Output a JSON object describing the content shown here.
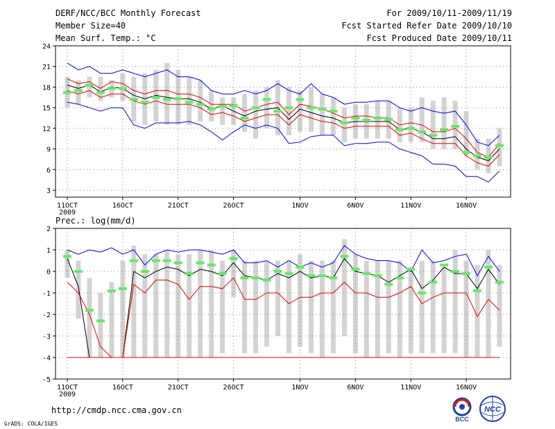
{
  "header": {
    "title": "DERF/NCC/BCC Monthly Forecast",
    "member_size": "Member Size=40",
    "variable_temp": "Mean Surf. Temp.: °C",
    "forecast_range": "For 2009/10/11-2009/11/19",
    "fcst_started": "Fcst Started Refer Date 2009/10/10",
    "fcst_produced": "Fcst Produced Date 2009/10/11"
  },
  "footer": {
    "url": "http://cmdp.ncc.cma.gov.cn",
    "grads": "GrADS: COLA/IGES",
    "logo_bcc": "BCC",
    "logo_ncc": "NCC"
  },
  "colors": {
    "box": "#d3d3d3",
    "green": "#66e866",
    "blue": "#0000e6",
    "red": "#e00000",
    "black": "#000000",
    "grid": "#888888"
  },
  "chart_data": [
    {
      "type": "line",
      "title": "Mean Surf. Temp.: °C",
      "ylim": [
        2,
        24
      ],
      "yticks": [
        3,
        6,
        9,
        12,
        15,
        18,
        21,
        24
      ],
      "x_start_label": "11OCT",
      "x_ticks": [
        {
          "day": 0,
          "label": "11OCT"
        },
        {
          "day": 5,
          "label": "16OCT"
        },
        {
          "day": 10,
          "label": "21OCT"
        },
        {
          "day": 15,
          "label": "26OCT"
        },
        {
          "day": 21,
          "label": "1NOV"
        },
        {
          "day": 26,
          "label": "6NOV"
        },
        {
          "day": 31,
          "label": "11NOV"
        },
        {
          "day": 36,
          "label": "16NOV"
        }
      ],
      "year_label": "2009",
      "days": 40,
      "box_low": [
        15.0,
        15.5,
        16.5,
        16.0,
        16.5,
        16.0,
        13.0,
        12.5,
        13.0,
        12.5,
        12.5,
        12.5,
        13.0,
        13.0,
        12.5,
        12.5,
        11.5,
        10.5,
        12.0,
        11.0,
        11.0,
        11.5,
        11.5,
        11.0,
        11.0,
        10.0,
        10.5,
        10.5,
        10.5,
        10.5,
        10.0,
        10.0,
        10.0,
        9.0,
        9.0,
        9.0,
        8.0,
        6.0,
        5.5,
        6.5
      ],
      "box_high": [
        19.5,
        19.0,
        19.5,
        19.5,
        19.0,
        20.0,
        19.5,
        20.0,
        20.5,
        21.5,
        20.5,
        19.5,
        19.0,
        17.5,
        16.5,
        16.5,
        17.0,
        17.5,
        18.0,
        19.0,
        18.0,
        17.5,
        18.0,
        17.0,
        16.5,
        15.0,
        15.5,
        15.5,
        16.0,
        16.0,
        15.0,
        15.0,
        16.5,
        16.0,
        16.5,
        16.0,
        14.5,
        10.5,
        10.5,
        12.0
      ],
      "green": [
        17.2,
        17.5,
        18.3,
        17.2,
        17.8,
        17.8,
        16.2,
        15.8,
        16.5,
        16.2,
        16.3,
        15.8,
        15.5,
        14.8,
        15.2,
        15.3,
        13.5,
        15.0,
        16.2,
        14.5,
        15.0,
        16.2,
        15.0,
        14.8,
        14.5,
        12.8,
        13.5,
        13.2,
        13.5,
        13.3,
        11.8,
        12.0,
        11.5,
        11.0,
        11.8,
        12.3,
        8.5,
        8.0,
        7.8,
        9.5
      ],
      "series": [
        {
          "name": "max",
          "color": "#0000e6",
          "values": [
            21.5,
            20.5,
            21.0,
            20.0,
            20.0,
            20.5,
            20.0,
            19.5,
            20.0,
            20.5,
            19.5,
            19.5,
            19.0,
            17.5,
            17.0,
            17.0,
            17.5,
            17.0,
            17.5,
            18.5,
            17.5,
            17.0,
            18.5,
            17.0,
            16.5,
            15.5,
            15.8,
            15.8,
            16.0,
            16.0,
            15.0,
            14.5,
            15.0,
            14.5,
            14.2,
            14.5,
            12.5,
            10.0,
            9.5,
            11.0
          ]
        },
        {
          "name": "mean_plus",
          "color": "#e00000",
          "values": [
            19.2,
            18.5,
            18.8,
            17.8,
            18.8,
            18.5,
            17.5,
            17.0,
            17.5,
            17.5,
            17.0,
            17.0,
            16.5,
            15.5,
            15.5,
            15.5,
            14.5,
            15.0,
            15.5,
            15.8,
            14.0,
            15.5,
            15.2,
            14.8,
            14.2,
            13.5,
            13.8,
            13.8,
            13.5,
            13.5,
            12.5,
            12.8,
            12.5,
            11.5,
            11.5,
            12.0,
            10.5,
            8.5,
            7.8,
            9.8
          ]
        },
        {
          "name": "mean",
          "color": "#000000",
          "values": [
            18.3,
            17.8,
            18.3,
            17.3,
            18.0,
            17.8,
            16.8,
            16.3,
            16.8,
            16.5,
            16.3,
            16.3,
            15.8,
            14.8,
            15.3,
            14.5,
            13.8,
            14.5,
            14.8,
            15.0,
            13.3,
            14.8,
            14.3,
            13.8,
            13.5,
            12.8,
            13.0,
            13.0,
            13.0,
            13.0,
            11.8,
            12.0,
            11.5,
            10.5,
            10.5,
            10.8,
            9.0,
            7.8,
            7.3,
            9.0
          ]
        },
        {
          "name": "mean_minus",
          "color": "#e00000",
          "values": [
            17.5,
            17.0,
            17.5,
            16.5,
            17.0,
            17.0,
            16.0,
            15.5,
            16.0,
            15.5,
            15.5,
            15.5,
            15.0,
            14.0,
            14.3,
            13.8,
            13.0,
            13.5,
            14.0,
            14.0,
            12.5,
            14.0,
            13.5,
            13.0,
            12.8,
            12.0,
            12.3,
            12.3,
            12.3,
            12.3,
            11.0,
            11.3,
            10.5,
            9.8,
            9.8,
            9.8,
            8.0,
            7.0,
            6.5,
            8.2
          ]
        },
        {
          "name": "min",
          "color": "#0000e6",
          "values": [
            15.8,
            15.5,
            15.0,
            14.5,
            15.0,
            15.0,
            12.5,
            12.0,
            12.8,
            12.8,
            12.8,
            13.0,
            12.5,
            11.5,
            10.3,
            11.5,
            12.5,
            12.0,
            12.5,
            12.0,
            9.8,
            10.0,
            10.8,
            11.0,
            11.0,
            9.5,
            9.8,
            9.8,
            10.0,
            10.0,
            9.0,
            8.5,
            8.0,
            6.8,
            6.8,
            6.5,
            5.0,
            5.0,
            4.2,
            5.8
          ]
        }
      ]
    },
    {
      "type": "line",
      "title": "Prec.: log(mm/d)",
      "ylim": [
        -5,
        2
      ],
      "yticks": [
        -5,
        -4,
        -3,
        -2,
        -1,
        0,
        1,
        2
      ],
      "x_ticks": [
        {
          "day": 0,
          "label": "11OCT"
        },
        {
          "day": 5,
          "label": "16OCT"
        },
        {
          "day": 10,
          "label": "21OCT"
        },
        {
          "day": 15,
          "label": "26OCT"
        },
        {
          "day": 21,
          "label": "1NOV"
        },
        {
          "day": 26,
          "label": "6NOV"
        },
        {
          "day": 31,
          "label": "11NOV"
        },
        {
          "day": 36,
          "label": "16NOV"
        }
      ],
      "year_label": "2009",
      "days": 40,
      "box_low": [
        -0.3,
        -2.2,
        -4.0,
        -4.0,
        -4.0,
        -4.0,
        -4.0,
        -4.0,
        -4.0,
        -4.0,
        -4.0,
        -4.0,
        -4.0,
        -4.0,
        -3.8,
        -1.2,
        -3.8,
        -3.8,
        -3.5,
        -3.0,
        -3.8,
        -3.5,
        -3.8,
        -4.0,
        -3.8,
        -3.0,
        -3.8,
        -4.0,
        -4.0,
        -3.8,
        -4.0,
        -3.8,
        -3.8,
        -3.8,
        -3.8,
        -3.8,
        -4.0,
        -4.0,
        -4.0,
        -3.5
      ],
      "box_high": [
        1.0,
        0.5,
        -0.3,
        -1.0,
        -0.5,
        0.5,
        1.2,
        0.8,
        0.8,
        1.0,
        0.8,
        0.8,
        1.0,
        1.0,
        0.5,
        1.0,
        0.5,
        0.5,
        0.5,
        0.5,
        0.5,
        0.8,
        0.5,
        0.5,
        0.5,
        1.5,
        0.8,
        0.5,
        0.5,
        0.5,
        0.5,
        0.2,
        0.5,
        0.5,
        0.2,
        1.0,
        0.5,
        0.3,
        1.0,
        0.3
      ],
      "green": [
        0.7,
        0.0,
        -1.8,
        -2.3,
        -0.9,
        -0.8,
        0.5,
        0.0,
        0.5,
        0.5,
        0.4,
        -0.1,
        0.4,
        0.3,
        -0.1,
        0.6,
        -0.3,
        -0.3,
        -0.4,
        0.0,
        -0.1,
        0.2,
        -0.2,
        -0.2,
        -0.3,
        0.7,
        0.1,
        -0.1,
        -0.2,
        -0.6,
        -0.3,
        0.1,
        -1.0,
        -0.5,
        0.3,
        0.0,
        -0.1,
        -0.9,
        0.2,
        -0.5
      ],
      "series": [
        {
          "name": "max",
          "color": "#0000e6",
          "values": [
            1.0,
            0.8,
            1.0,
            0.9,
            1.1,
            0.8,
            1.0,
            0.3,
            0.8,
            1.0,
            0.9,
            1.0,
            1.0,
            0.9,
            0.8,
            1.0,
            0.4,
            0.4,
            0.5,
            0.2,
            0.5,
            0.2,
            0.4,
            0.2,
            0.4,
            1.2,
            0.8,
            0.6,
            0.5,
            0.5,
            0.4,
            0.0,
            1.0,
            0.4,
            0.5,
            0.7,
            0.8,
            -0.2,
            0.7,
            0.0
          ]
        },
        {
          "name": "mean",
          "color": "#000000",
          "values": [
            0.6,
            -0.7,
            -4.0,
            -4.0,
            -4.0,
            -4.0,
            0.0,
            -0.3,
            0.0,
            0.2,
            0.1,
            -0.2,
            0.1,
            0.0,
            -0.2,
            0.4,
            -0.2,
            -0.3,
            -0.4,
            -0.1,
            -0.3,
            0.0,
            -0.3,
            -0.2,
            -0.3,
            0.6,
            0.0,
            -0.1,
            -0.2,
            -0.5,
            -0.2,
            0.1,
            -0.8,
            -0.4,
            0.2,
            -0.1,
            -0.1,
            -0.8,
            0.1,
            -0.6
          ]
        },
        {
          "name": "mean_minus",
          "color": "#e00000",
          "values": [
            -0.5,
            -1.0,
            -2.0,
            -3.5,
            -4.0,
            -4.0,
            -0.6,
            -1.0,
            -0.4,
            -0.4,
            -0.6,
            -1.3,
            -0.7,
            -0.7,
            -0.8,
            -0.3,
            -1.3,
            -1.3,
            -1.0,
            -1.0,
            -1.5,
            -1.2,
            -1.2,
            -1.0,
            -1.0,
            -0.5,
            -1.0,
            -1.0,
            -1.2,
            -1.2,
            -1.0,
            -0.7,
            -1.5,
            -1.2,
            -1.0,
            -1.0,
            -1.0,
            -2.1,
            -1.3,
            -1.8
          ]
        },
        {
          "name": "min",
          "color": "#0000e6",
          "values": [
            -4.0,
            -4.0,
            -4.0,
            -4.0,
            -4.0,
            -4.0,
            -4.0,
            -4.0,
            -4.0,
            -4.0,
            -4.0,
            -4.0,
            -4.0,
            -4.0,
            -4.0,
            -4.0,
            -4.0,
            -4.0,
            -4.0,
            -4.0,
            -4.0,
            -4.0,
            -4.0,
            -4.0,
            -4.0,
            -4.0,
            -4.0,
            -4.0,
            -4.0,
            -4.0,
            -4.0,
            -4.0,
            -4.0,
            -4.0,
            -4.0,
            -4.0,
            -4.0,
            -4.0,
            -4.0,
            -4.0
          ]
        },
        {
          "name": "lower_red",
          "color": "#e00000",
          "values": [
            -4.0,
            -4.0,
            -4.0,
            -4.0,
            -4.0,
            -4.0,
            -4.0,
            -4.0,
            -4.0,
            -4.0,
            -4.0,
            -4.0,
            -4.0,
            -4.0,
            -4.0,
            -4.0,
            -4.0,
            -4.0,
            -4.0,
            -4.0,
            -4.0,
            -4.0,
            -4.0,
            -4.0,
            -4.0,
            -4.0,
            -4.0,
            -4.0,
            -4.0,
            -4.0,
            -4.0,
            -4.0,
            -4.0,
            -4.0,
            -4.0,
            -4.0,
            -4.0,
            -4.0,
            -4.0,
            -4.0
          ]
        }
      ]
    }
  ]
}
